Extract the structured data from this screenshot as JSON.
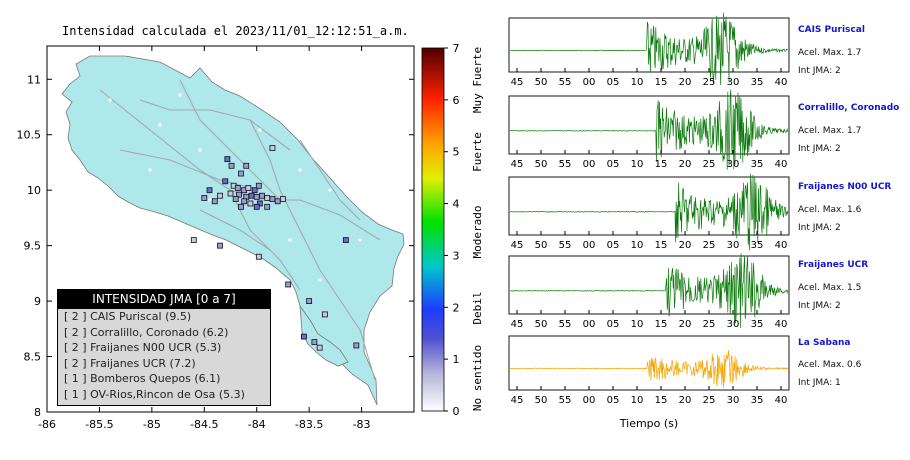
{
  "map": {
    "title": "Intensidad calculada el 2023/11/01_12:12:51_a.m.",
    "xticks": [
      "-86",
      "-85.5",
      "-85",
      "-84.5",
      "-84",
      "-83.5",
      "-83"
    ],
    "yticks": [
      "11",
      "10.5",
      "10",
      "9.5",
      "9",
      "8.5",
      "8"
    ],
    "xrange": [
      -86,
      -82.5
    ],
    "yrange": [
      8,
      11.3
    ]
  },
  "colorbar": {
    "ticks": [
      "0",
      "1",
      "2",
      "3",
      "4",
      "5",
      "6",
      "7"
    ],
    "labels": [
      "No sentido",
      "Debil",
      "Moderado",
      "Fuerte",
      "Muy Fuerte"
    ]
  },
  "legend": {
    "title": "INTENSIDAD JMA [0 a 7]",
    "rows": [
      "[ 2 ]  CAIS Puriscal (9.5)",
      "[ 2 ]  Corralillo, Coronado (6.2)",
      "[ 2 ]  Fraijanes N00 UCR (5.3)",
      "[ 2 ]  Fraijanes UCR (7.2)",
      "[ 1 ]  Bomberos Quepos (6.1)",
      "[ 1 ]  OV-Rios,Rincon de Osa (5.3)"
    ]
  },
  "waveforms": {
    "xticks": [
      "45",
      "50",
      "55",
      "00",
      "05",
      "10",
      "15",
      "20",
      "25",
      "30",
      "35",
      "40"
    ],
    "xlabel": "Tiempo (s)",
    "stations": [
      {
        "name": "CAIS Puriscal",
        "acel": "Acel. Max. 1.7",
        "int": "Int JMA: 2",
        "color": "#0a7a0a"
      },
      {
        "name": "Corralillo, Coronado",
        "acel": "Acel. Max. 1.7",
        "int": "Int JMA: 2",
        "color": "#0a7a0a"
      },
      {
        "name": "Fraijanes N00 UCR",
        "acel": "Acel. Max. 1.6",
        "int": "Int JMA: 2",
        "color": "#0a7a0a"
      },
      {
        "name": "Fraijanes UCR",
        "acel": "Acel. Max. 1.5",
        "int": "Int JMA: 2",
        "color": "#0a7a0a"
      },
      {
        "name": "La Sabana",
        "acel": "Acel. Max. 0.6",
        "int": "Int JMA: 1",
        "color": "#f5a300"
      }
    ]
  },
  "chart_data": [
    {
      "type": "scatter",
      "title": "Intensidad calculada el 2023/11/01_12:12:51_a.m.",
      "xlabel": "",
      "ylabel": "",
      "xlim": [
        -86,
        -82.5
      ],
      "ylim": [
        8,
        11.3
      ],
      "points": [
        [
          -84.28,
          10.28
        ],
        [
          -84.24,
          10.22
        ],
        [
          -84.1,
          10.22
        ],
        [
          -83.85,
          10.38
        ],
        [
          -84.15,
          10.15
        ],
        [
          -84.3,
          10.08
        ],
        [
          -84.22,
          10.04
        ],
        [
          -84.18,
          10.02
        ],
        [
          -84.12,
          10.0
        ],
        [
          -84.08,
          10.02
        ],
        [
          -84.02,
          10.0
        ],
        [
          -83.98,
          10.04
        ],
        [
          -84.25,
          9.97
        ],
        [
          -84.17,
          9.96
        ],
        [
          -84.1,
          9.94
        ],
        [
          -84.05,
          9.95
        ],
        [
          -84.0,
          9.94
        ],
        [
          -83.95,
          9.95
        ],
        [
          -83.9,
          9.93
        ],
        [
          -83.85,
          9.92
        ],
        [
          -84.45,
          10.0
        ],
        [
          -84.35,
          9.95
        ],
        [
          -84.2,
          9.92
        ],
        [
          -84.12,
          9.9
        ],
        [
          -84.06,
          9.88
        ],
        [
          -83.97,
          9.88
        ],
        [
          -83.8,
          9.9
        ],
        [
          -83.75,
          9.92
        ],
        [
          -84.5,
          9.93
        ],
        [
          -84.4,
          9.9
        ],
        [
          -84.0,
          9.85
        ],
        [
          -84.15,
          9.85
        ],
        [
          -83.9,
          9.85
        ],
        [
          -84.6,
          9.55
        ],
        [
          -84.35,
          9.5
        ],
        [
          -83.15,
          9.55
        ],
        [
          -83.98,
          9.4
        ],
        [
          -83.7,
          9.15
        ],
        [
          -83.5,
          9.0
        ],
        [
          -83.35,
          8.88
        ],
        [
          -83.55,
          8.68
        ],
        [
          -83.45,
          8.63
        ],
        [
          -83.4,
          8.58
        ],
        [
          -83.05,
          8.6
        ]
      ]
    },
    {
      "type": "line",
      "title": "",
      "xlabel": "Tiempo (s)",
      "x_ticks": [
        "45",
        "50",
        "55",
        "00",
        "05",
        "10",
        "15",
        "20",
        "25",
        "30",
        "35",
        "40"
      ],
      "series": [
        {
          "name": "CAIS Puriscal",
          "onset": 12,
          "peak": 1.7
        },
        {
          "name": "Corralillo, Coronado",
          "onset": 14,
          "peak": 1.7
        },
        {
          "name": "Fraijanes N00 UCR",
          "onset": 18,
          "peak": 1.6
        },
        {
          "name": "Fraijanes UCR",
          "onset": 16,
          "peak": 1.5
        },
        {
          "name": "La Sabana",
          "onset": 12,
          "peak": 0.6
        }
      ]
    }
  ]
}
